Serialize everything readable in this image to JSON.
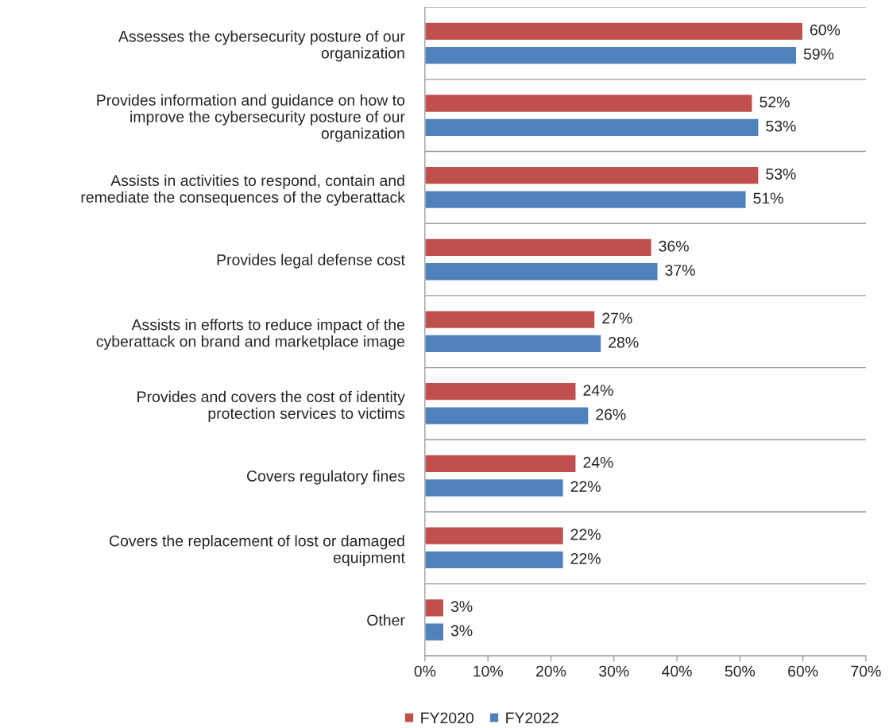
{
  "chart_data": {
    "type": "bar",
    "orientation": "horizontal",
    "categories": [
      "Assesses the cybersecurity posture of our\norganization",
      "Provides information and guidance on how to\nimprove the cybersecurity posture of our\norganization",
      "Assists in activities to respond, contain and\nremediate the consequences of the cyberattack",
      "Provides legal defense cost",
      "Assists in efforts to reduce impact of the\ncyberattack on brand and marketplace image",
      "Provides and covers the cost of identity\nprotection services to victims",
      "Covers regulatory fines",
      "Covers the replacement of lost or damaged\nequipment",
      "Other"
    ],
    "series": [
      {
        "name": "FY2020",
        "color": "#c0504d",
        "values": [
          60,
          52,
          53,
          36,
          27,
          24,
          24,
          22,
          3
        ],
        "value_labels": [
          "60%",
          "52%",
          "53%",
          "36%",
          "27%",
          "24%",
          "24%",
          "22%",
          "3%"
        ]
      },
      {
        "name": "FY2022",
        "color": "#4f81bd",
        "values": [
          59,
          53,
          51,
          37,
          28,
          26,
          22,
          22,
          3
        ],
        "value_labels": [
          "59%",
          "53%",
          "51%",
          "37%",
          "28%",
          "26%",
          "22%",
          "22%",
          "3%"
        ]
      }
    ],
    "xlim": [
      0,
      70
    ],
    "xticks": [
      {
        "value": 0,
        "label": "0%"
      },
      {
        "value": 10,
        "label": "10%"
      },
      {
        "value": 20,
        "label": "20%"
      },
      {
        "value": 30,
        "label": "30%"
      },
      {
        "value": 40,
        "label": "40%"
      },
      {
        "value": 50,
        "label": "50%"
      },
      {
        "value": 60,
        "label": "60%"
      },
      {
        "value": 70,
        "label": "70%"
      }
    ],
    "legend": "bottom",
    "grid": "y"
  }
}
